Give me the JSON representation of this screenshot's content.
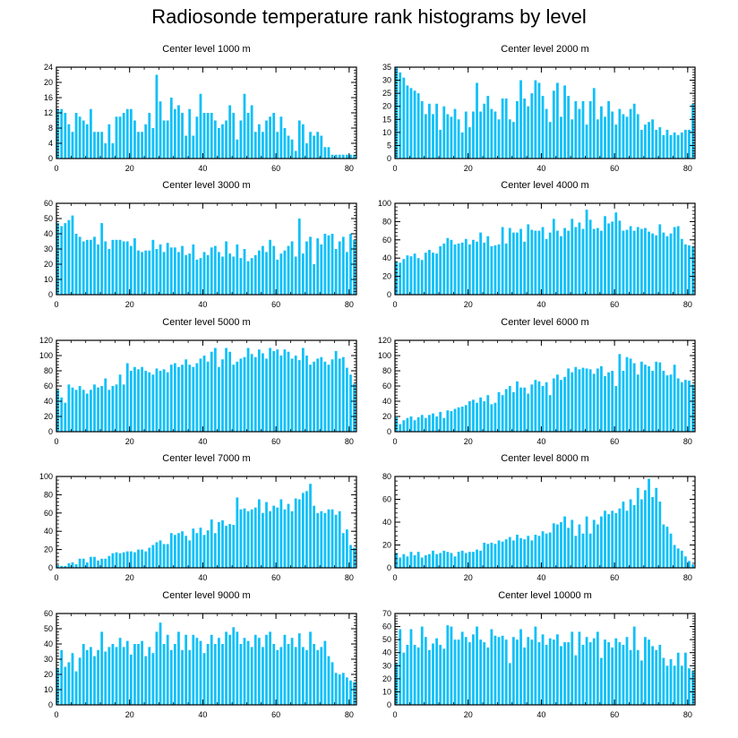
{
  "title": "Radiosonde temperature rank histograms by level",
  "colors": {
    "bar": "#10C0F8",
    "axis": "#000000"
  },
  "chart_data": [
    {
      "type": "bar",
      "title": "Center level 1000 m",
      "xlim": [
        0,
        82
      ],
      "ylim": [
        0,
        24
      ],
      "xticks": [
        0,
        20,
        40,
        60,
        80
      ],
      "yticks": [
        0,
        4,
        8,
        12,
        16,
        20,
        24
      ],
      "values": [
        13,
        13,
        12,
        9,
        7,
        12,
        11,
        10,
        9,
        13,
        7,
        7,
        7,
        4,
        9,
        4,
        11,
        11,
        12,
        13,
        13,
        10,
        7,
        7,
        9,
        12,
        8,
        22,
        15,
        10,
        10,
        16,
        13,
        14,
        12,
        6,
        13,
        6,
        11,
        17,
        12,
        12,
        12,
        10,
        8,
        9,
        10,
        14,
        12,
        5,
        10,
        17,
        12,
        14,
        7,
        9,
        7,
        10,
        11,
        12,
        7,
        11,
        8,
        6,
        5,
        2,
        10,
        9,
        4,
        7,
        6,
        7,
        6,
        3,
        3,
        1,
        1,
        1,
        1,
        1,
        1,
        1
      ]
    },
    {
      "type": "bar",
      "title": "Center level 2000 m",
      "xlim": [
        0,
        82
      ],
      "ylim": [
        0,
        35
      ],
      "xticks": [
        0,
        20,
        40,
        60,
        80
      ],
      "yticks": [
        0,
        5,
        10,
        15,
        20,
        25,
        30,
        35
      ],
      "values": [
        35,
        33,
        31,
        28,
        27,
        26,
        25,
        22,
        17,
        21,
        17,
        21,
        11,
        20,
        17,
        16,
        19,
        15,
        10,
        18,
        12,
        18,
        29,
        18,
        21,
        24,
        19,
        18,
        15,
        23,
        23,
        15,
        14,
        22,
        30,
        23,
        20,
        25,
        30,
        29,
        24,
        19,
        14,
        26,
        29,
        16,
        28,
        24,
        15,
        22,
        19,
        22,
        13,
        22,
        27,
        15,
        20,
        16,
        22,
        18,
        13,
        19,
        17,
        16,
        19,
        21,
        17,
        11,
        13,
        14,
        15,
        11,
        12,
        9,
        11,
        9,
        10,
        9,
        10,
        11,
        11,
        21
      ]
    },
    {
      "type": "bar",
      "title": "Center level 3000 m",
      "xlim": [
        0,
        82
      ],
      "ylim": [
        0,
        60
      ],
      "xticks": [
        0,
        20,
        40,
        60,
        80
      ],
      "yticks": [
        0,
        10,
        20,
        30,
        40,
        50,
        60
      ],
      "values": [
        47,
        45,
        47,
        49,
        52,
        40,
        38,
        35,
        36,
        36,
        38,
        33,
        47,
        35,
        30,
        36,
        36,
        36,
        35,
        35,
        32,
        37,
        29,
        28,
        29,
        29,
        36,
        30,
        33,
        28,
        34,
        31,
        31,
        28,
        32,
        26,
        27,
        33,
        23,
        24,
        28,
        26,
        31,
        32,
        28,
        25,
        35,
        27,
        25,
        33,
        24,
        30,
        22,
        24,
        26,
        29,
        32,
        28,
        36,
        32,
        23,
        27,
        29,
        32,
        35,
        25,
        50,
        27,
        35,
        38,
        20,
        37,
        33,
        40,
        39,
        40,
        30,
        35,
        38,
        28,
        40,
        36
      ]
    },
    {
      "type": "bar",
      "title": "Center level 4000 m",
      "xlim": [
        0,
        82
      ],
      "ylim": [
        0,
        100
      ],
      "xticks": [
        0,
        20,
        40,
        60,
        80
      ],
      "yticks": [
        0,
        20,
        40,
        60,
        80,
        100
      ],
      "values": [
        36,
        35,
        39,
        43,
        42,
        45,
        40,
        38,
        46,
        49,
        46,
        45,
        53,
        56,
        62,
        60,
        55,
        56,
        57,
        61,
        55,
        60,
        58,
        68,
        57,
        64,
        53,
        54,
        55,
        74,
        56,
        73,
        68,
        68,
        72,
        58,
        77,
        71,
        70,
        70,
        74,
        61,
        68,
        83,
        70,
        64,
        73,
        70,
        83,
        74,
        79,
        72,
        93,
        82,
        72,
        73,
        70,
        86,
        78,
        80,
        90,
        81,
        70,
        71,
        75,
        70,
        74,
        72,
        73,
        69,
        67,
        65,
        77,
        68,
        64,
        67,
        74,
        75,
        61,
        55,
        54,
        53
      ]
    },
    {
      "type": "bar",
      "title": "Center level 5000 m",
      "xlim": [
        0,
        82
      ],
      "ylim": [
        0,
        120
      ],
      "xticks": [
        0,
        20,
        40,
        60,
        80
      ],
      "yticks": [
        0,
        20,
        40,
        60,
        80,
        100,
        120
      ],
      "values": [
        55,
        45,
        38,
        62,
        58,
        55,
        60,
        55,
        50,
        55,
        62,
        58,
        60,
        70,
        55,
        60,
        62,
        75,
        62,
        90,
        80,
        85,
        82,
        85,
        80,
        78,
        75,
        83,
        80,
        82,
        78,
        88,
        90,
        85,
        88,
        95,
        88,
        85,
        90,
        96,
        100,
        92,
        105,
        110,
        85,
        95,
        110,
        105,
        88,
        92,
        96,
        98,
        110,
        102,
        98,
        108,
        103,
        96,
        110,
        106,
        108,
        100,
        108,
        105,
        96,
        100,
        94,
        110,
        100,
        88,
        92,
        96,
        98,
        92,
        88,
        95,
        106,
        96,
        98,
        84,
        75,
        63
      ]
    },
    {
      "type": "bar",
      "title": "Center level 6000 m",
      "xlim": [
        0,
        82
      ],
      "ylim": [
        0,
        120
      ],
      "xticks": [
        0,
        20,
        40,
        60,
        80
      ],
      "yticks": [
        0,
        20,
        40,
        60,
        80,
        100,
        120
      ],
      "values": [
        19,
        10,
        15,
        18,
        20,
        15,
        19,
        22,
        18,
        22,
        24,
        20,
        26,
        18,
        28,
        27,
        30,
        32,
        33,
        35,
        40,
        42,
        38,
        45,
        40,
        48,
        36,
        38,
        52,
        48,
        56,
        60,
        52,
        66,
        58,
        58,
        50,
        62,
        68,
        66,
        60,
        65,
        48,
        70,
        75,
        68,
        72,
        83,
        78,
        85,
        82,
        84,
        83,
        82,
        76,
        83,
        86,
        73,
        78,
        80,
        60,
        102,
        80,
        98,
        96,
        90,
        75,
        92,
        88,
        86,
        80,
        92,
        91,
        80,
        74,
        75,
        88,
        70,
        65,
        68,
        67,
        62
      ]
    },
    {
      "type": "bar",
      "title": "Center level 7000 m",
      "xlim": [
        0,
        82
      ],
      "ylim": [
        0,
        100
      ],
      "xticks": [
        0,
        20,
        40,
        60,
        80
      ],
      "yticks": [
        0,
        20,
        40,
        60,
        80,
        100
      ],
      "values": [
        3,
        2,
        2,
        5,
        6,
        4,
        10,
        10,
        6,
        12,
        12,
        8,
        10,
        10,
        13,
        16,
        17,
        16,
        17,
        18,
        18,
        17,
        20,
        20,
        18,
        22,
        25,
        28,
        30,
        26,
        26,
        38,
        36,
        38,
        40,
        35,
        30,
        43,
        38,
        44,
        36,
        41,
        53,
        38,
        50,
        52,
        46,
        48,
        47,
        77,
        64,
        65,
        62,
        64,
        66,
        75,
        60,
        72,
        62,
        68,
        66,
        75,
        64,
        70,
        62,
        76,
        75,
        82,
        84,
        92,
        68,
        60,
        62,
        60,
        64,
        64,
        58,
        62,
        38,
        42,
        25,
        22
      ]
    },
    {
      "type": "bar",
      "title": "Center level 8000 m",
      "xlim": [
        0,
        82
      ],
      "ylim": [
        0,
        80
      ],
      "xticks": [
        0,
        20,
        40,
        60,
        80
      ],
      "yticks": [
        0,
        20,
        40,
        60,
        80
      ],
      "values": [
        13,
        9,
        12,
        10,
        14,
        11,
        14,
        9,
        11,
        12,
        15,
        12,
        13,
        15,
        14,
        13,
        10,
        14,
        15,
        13,
        14,
        14,
        16,
        15,
        22,
        21,
        22,
        21,
        24,
        23,
        25,
        27,
        24,
        29,
        26,
        25,
        28,
        24,
        29,
        28,
        32,
        30,
        31,
        39,
        38,
        40,
        45,
        35,
        42,
        28,
        38,
        30,
        45,
        30,
        42,
        38,
        45,
        50,
        47,
        50,
        48,
        52,
        58,
        50,
        60,
        55,
        70,
        60,
        68,
        78,
        62,
        70,
        58,
        38,
        36,
        30,
        20,
        17,
        15,
        10,
        6,
        3
      ]
    },
    {
      "type": "bar",
      "title": "Center level 9000 m",
      "xlim": [
        0,
        82
      ],
      "ylim": [
        0,
        60
      ],
      "xticks": [
        0,
        20,
        40,
        60,
        80
      ],
      "yticks": [
        0,
        10,
        20,
        30,
        40,
        50,
        60
      ],
      "values": [
        24,
        36,
        25,
        28,
        34,
        22,
        31,
        40,
        36,
        38,
        32,
        36,
        48,
        35,
        38,
        40,
        38,
        44,
        38,
        42,
        33,
        40,
        40,
        42,
        32,
        38,
        34,
        48,
        54,
        40,
        46,
        36,
        40,
        48,
        36,
        46,
        36,
        46,
        44,
        42,
        34,
        40,
        46,
        40,
        44,
        40,
        48,
        46,
        51,
        48,
        40,
        44,
        42,
        38,
        46,
        44,
        38,
        46,
        48,
        40,
        36,
        38,
        46,
        40,
        44,
        38,
        47,
        38,
        36,
        48,
        40,
        36,
        38,
        42,
        32,
        28,
        21,
        20,
        21,
        18,
        16,
        15
      ]
    },
    {
      "type": "bar",
      "title": "Center level 10000 m",
      "xlim": [
        0,
        82
      ],
      "ylim": [
        0,
        70
      ],
      "xticks": [
        0,
        20,
        40,
        60,
        80
      ],
      "yticks": [
        0,
        10,
        20,
        30,
        40,
        50,
        60,
        70
      ],
      "values": [
        32,
        58,
        40,
        46,
        58,
        46,
        44,
        60,
        52,
        42,
        47,
        51,
        46,
        43,
        61,
        60,
        50,
        50,
        56,
        52,
        48,
        54,
        60,
        50,
        48,
        44,
        58,
        53,
        52,
        53,
        50,
        32,
        52,
        50,
        58,
        44,
        52,
        50,
        60,
        48,
        54,
        46,
        51,
        50,
        54,
        45,
        48,
        48,
        56,
        38,
        56,
        46,
        52,
        48,
        51,
        56,
        36,
        50,
        48,
        44,
        51,
        48,
        46,
        52,
        42,
        60,
        42,
        34,
        52,
        50,
        45,
        42,
        46,
        36,
        30,
        35,
        30,
        40,
        30,
        40,
        28,
        26
      ]
    }
  ]
}
